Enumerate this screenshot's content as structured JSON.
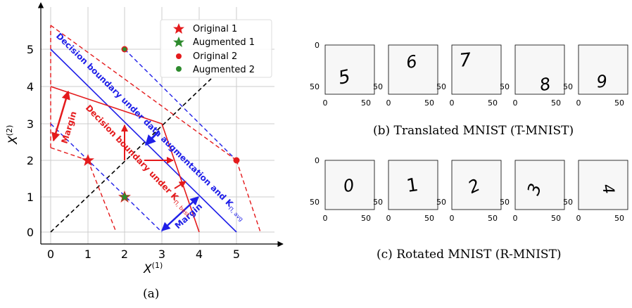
{
  "figure_a": {
    "caption": "(a)",
    "x_axis_label": "X",
    "x_axis_sup": "(1)",
    "y_axis_label": "X",
    "y_axis_sup": "(2)",
    "x_ticks": [
      "0",
      "1",
      "2",
      "3",
      "4",
      "5"
    ],
    "y_ticks": [
      "0",
      "1",
      "2",
      "3",
      "4",
      "5"
    ],
    "legend": [
      {
        "label": "Original 1",
        "marker": "star",
        "color": "#e41a1c"
      },
      {
        "label": "Augmented 1",
        "marker": "star",
        "color": "#2e8b2e"
      },
      {
        "label": "Original 2",
        "marker": "dot",
        "color": "#e41a1c"
      },
      {
        "label": "Augmented 2",
        "marker": "dot",
        "color": "#2e8b2e"
      }
    ],
    "annotations": {
      "blue_boundary": "Decision boundary under data augmentation and K",
      "blue_boundary_sub": "Π, avg",
      "red_boundary": "Decision boundary under K",
      "red_boundary_sub": "Π, best",
      "red_margin": "Margin",
      "blue_margin": "Margin"
    },
    "colors": {
      "red": "#e41a1c",
      "blue": "#1f1fe8",
      "green": "#2e8b2e",
      "grid": "#cccccc"
    }
  },
  "figure_b": {
    "caption": "(b) Translated MNIST (T-MNIST)",
    "panels": [
      {
        "digit": "5",
        "x_ticks": [
          "0",
          "50"
        ],
        "y_ticks": [
          "0",
          "50"
        ]
      },
      {
        "digit": "6",
        "x_ticks": [
          "0",
          "50"
        ],
        "y_ticks": [
          "0",
          "50"
        ]
      },
      {
        "digit": "7",
        "x_ticks": [
          "0",
          "50"
        ],
        "y_ticks": [
          "0",
          "50"
        ]
      },
      {
        "digit": "8",
        "x_ticks": [
          "0",
          "50"
        ],
        "y_ticks": [
          "0",
          "50"
        ]
      },
      {
        "digit": "9",
        "x_ticks": [
          "0",
          "50"
        ],
        "y_ticks": [
          "0",
          "50"
        ]
      }
    ]
  },
  "figure_c": {
    "caption": "(c) Rotated MNIST (R-MNIST)",
    "panels": [
      {
        "digit": "0",
        "x_ticks": [
          "0",
          "50"
        ],
        "y_ticks": [
          "0",
          "50"
        ]
      },
      {
        "digit": "1",
        "x_ticks": [
          "0",
          "50"
        ],
        "y_ticks": [
          "0",
          "50"
        ]
      },
      {
        "digit": "2",
        "x_ticks": [
          "0",
          "50"
        ],
        "y_ticks": [
          "0",
          "50"
        ]
      },
      {
        "digit": "3",
        "x_ticks": [
          "0",
          "50"
        ],
        "y_ticks": [
          "0",
          "50"
        ]
      },
      {
        "digit": "4",
        "x_ticks": [
          "0",
          "50"
        ],
        "y_ticks": [
          "0",
          "50"
        ]
      }
    ]
  }
}
